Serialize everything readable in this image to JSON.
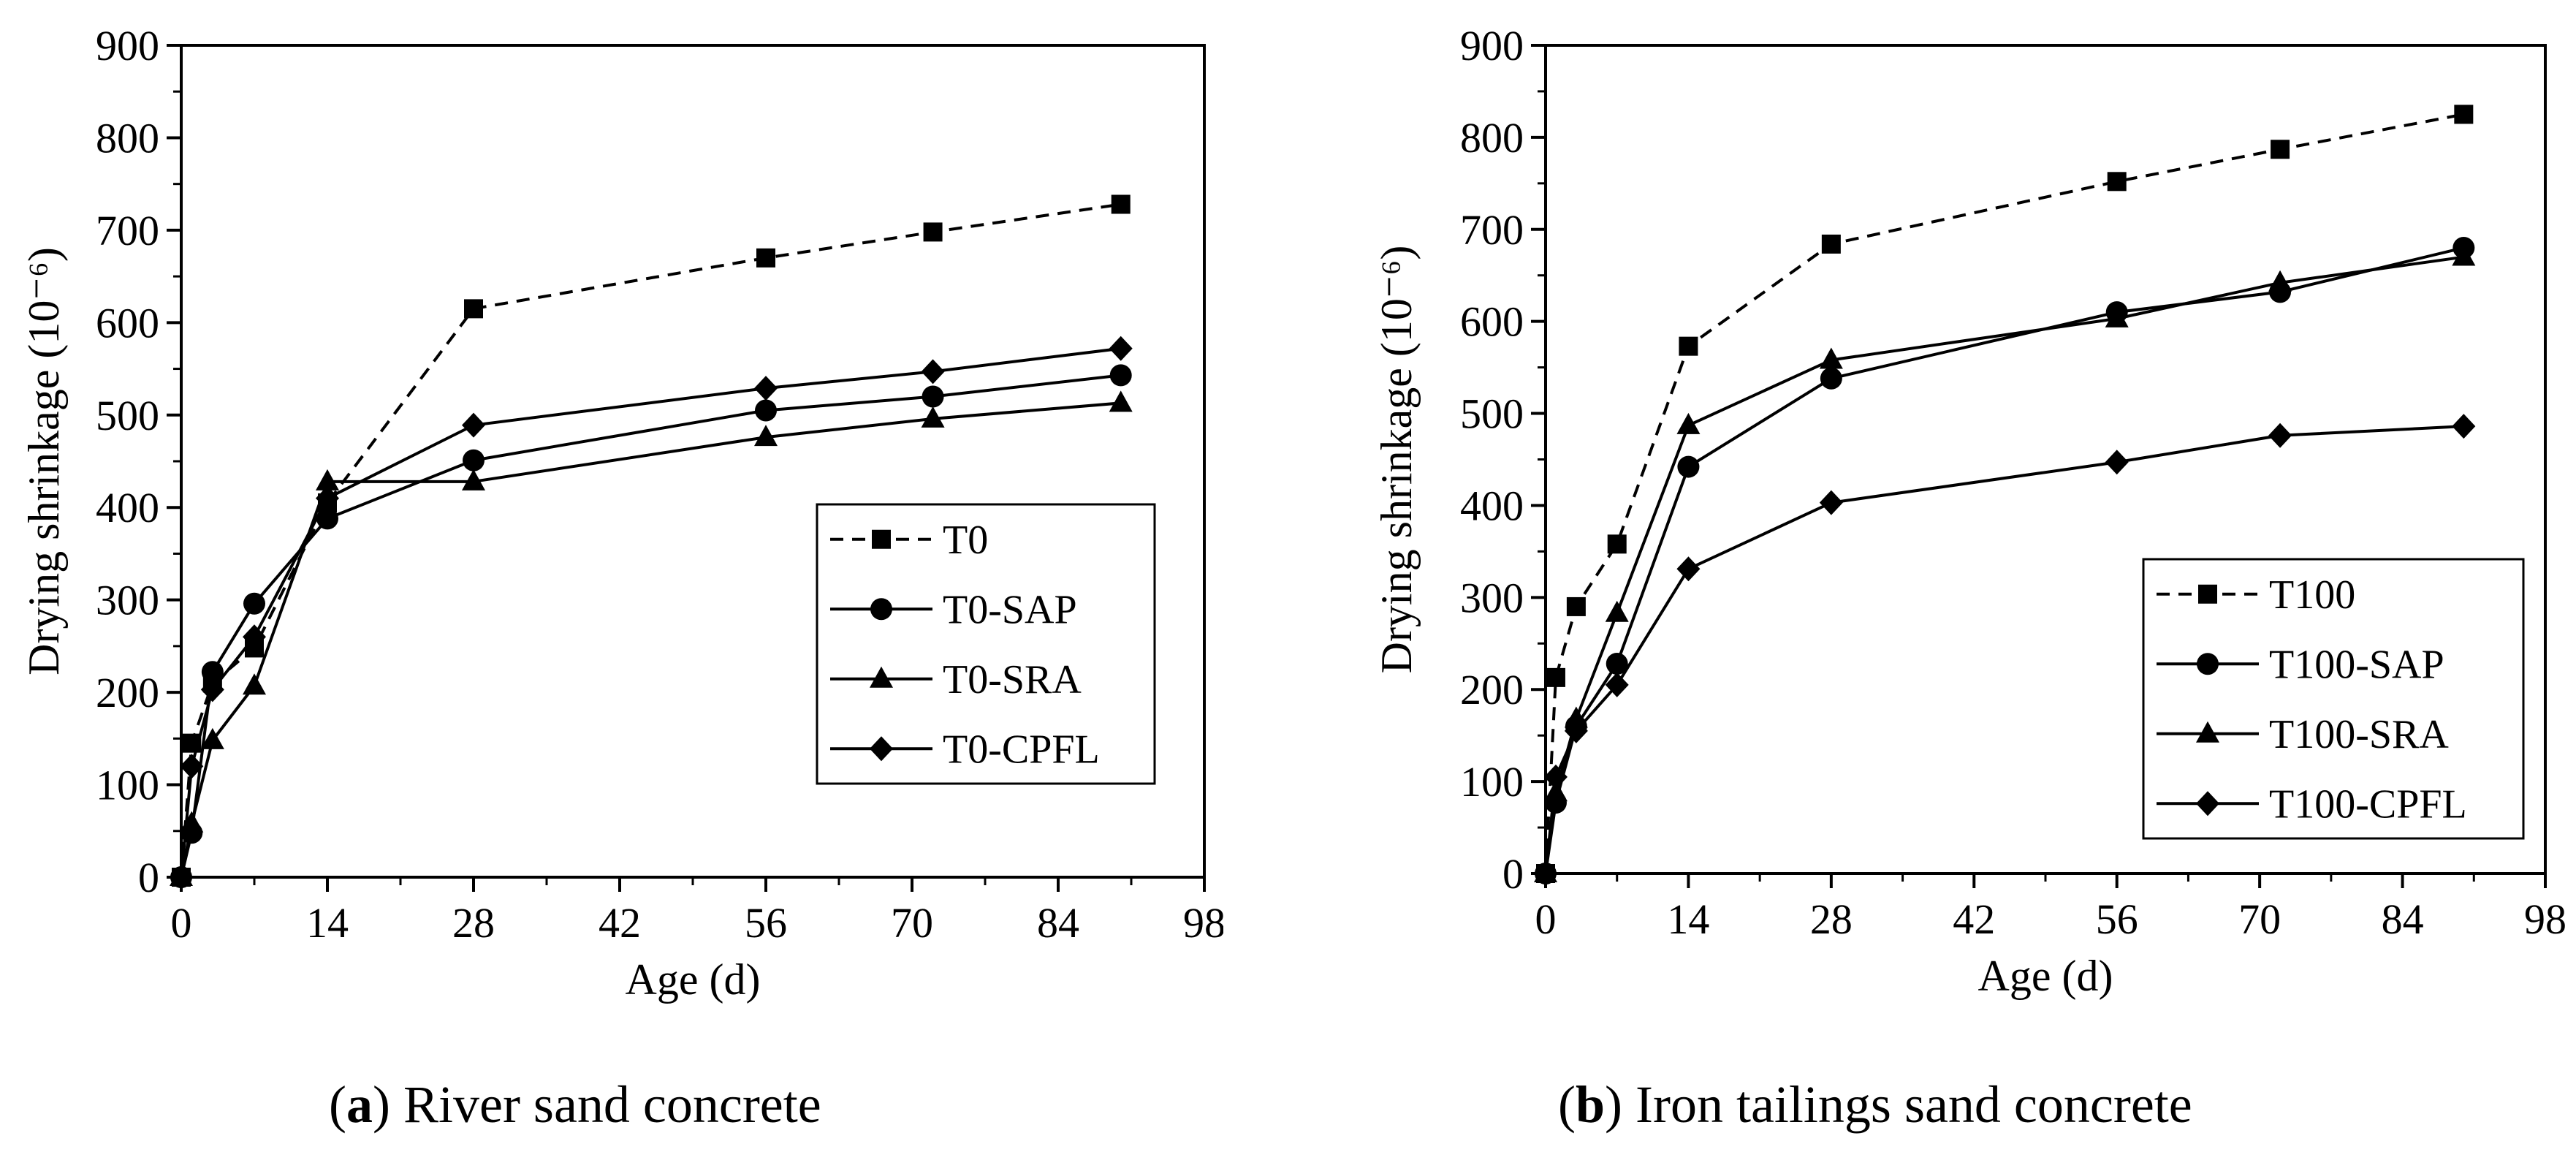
{
  "captions": [
    {
      "letter": "a",
      "rest": ") River sand concrete"
    },
    {
      "letter": "b",
      "rest": ") Iron tailings sand concrete"
    }
  ],
  "chart_data": [
    {
      "type": "line",
      "xlabel": "Age (d)",
      "ylabel": "Drying shrinkage (10⁻⁶)",
      "xlim": [
        0,
        98
      ],
      "ylim": [
        0,
        900
      ],
      "xticks": [
        0,
        14,
        28,
        42,
        56,
        70,
        84,
        98
      ],
      "yticks": [
        0,
        100,
        200,
        300,
        400,
        500,
        600,
        700,
        800,
        900
      ],
      "grid": false,
      "legend_position": "center-right",
      "series": [
        {
          "name": "T0",
          "marker": "square",
          "dash": true,
          "x": [
            0,
            1,
            3,
            7,
            14,
            28,
            56,
            72,
            90
          ],
          "y": [
            0,
            145,
            210,
            248,
            405,
            615,
            670,
            698,
            728
          ]
        },
        {
          "name": "T0-SAP",
          "marker": "circle",
          "dash": false,
          "x": [
            0,
            1,
            3,
            7,
            14,
            28,
            56,
            72,
            90
          ],
          "y": [
            0,
            48,
            222,
            296,
            388,
            451,
            505,
            520,
            543
          ]
        },
        {
          "name": "T0-SRA",
          "marker": "triangle",
          "dash": false,
          "x": [
            0,
            1,
            3,
            7,
            14,
            28,
            56,
            72,
            90
          ],
          "y": [
            0,
            58,
            148,
            207,
            428,
            428,
            476,
            496,
            513
          ]
        },
        {
          "name": "T0-CPFL",
          "marker": "diamond",
          "dash": false,
          "x": [
            0,
            1,
            3,
            7,
            14,
            28,
            56,
            72,
            90
          ],
          "y": [
            0,
            120,
            203,
            260,
            410,
            489,
            529,
            547,
            572
          ]
        }
      ]
    },
    {
      "type": "line",
      "xlabel": "Age (d)",
      "ylabel": "Drying shrinkage (10⁻⁶)",
      "xlim": [
        0,
        98
      ],
      "ylim": [
        0,
        900
      ],
      "xticks": [
        0,
        14,
        28,
        42,
        56,
        70,
        84,
        98
      ],
      "yticks": [
        0,
        100,
        200,
        300,
        400,
        500,
        600,
        700,
        800,
        900
      ],
      "grid": false,
      "legend_position": "bottom-right",
      "series": [
        {
          "name": "T100",
          "marker": "square",
          "dash": true,
          "x": [
            0,
            1,
            3,
            7,
            14,
            28,
            56,
            72,
            90
          ],
          "y": [
            0,
            213,
            290,
            358,
            573,
            684,
            752,
            787,
            825
          ]
        },
        {
          "name": "T100-SAP",
          "marker": "circle",
          "dash": false,
          "x": [
            0,
            1,
            3,
            7,
            14,
            28,
            56,
            72,
            90
          ],
          "y": [
            0,
            77,
            160,
            228,
            442,
            538,
            610,
            632,
            680
          ]
        },
        {
          "name": "T100-SRA",
          "marker": "triangle",
          "dash": false,
          "x": [
            0,
            1,
            3,
            7,
            14,
            28,
            56,
            72,
            90
          ],
          "y": [
            0,
            88,
            168,
            283,
            487,
            558,
            603,
            642,
            670
          ]
        },
        {
          "name": "T100-CPFL",
          "marker": "diamond",
          "dash": false,
          "x": [
            0,
            1,
            3,
            7,
            14,
            28,
            56,
            72,
            90
          ],
          "y": [
            0,
            105,
            155,
            205,
            331,
            403,
            447,
            476,
            486
          ]
        }
      ]
    }
  ]
}
